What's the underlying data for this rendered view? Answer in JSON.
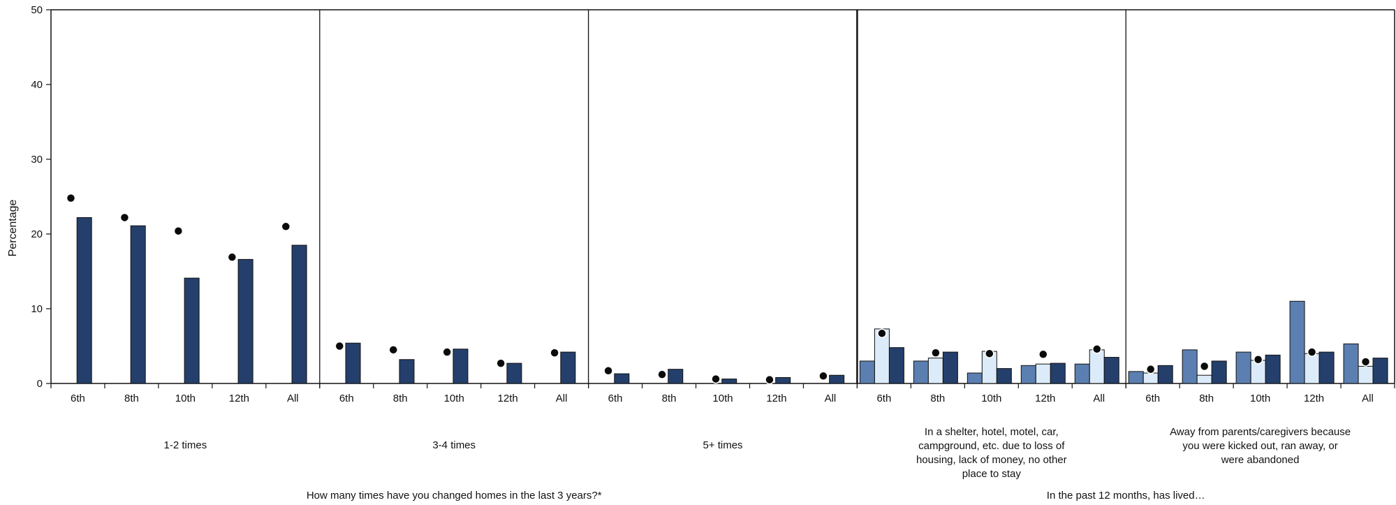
{
  "chart_data": {
    "type": "bar",
    "ylabel": "Percentage",
    "ylim": [
      0,
      50
    ],
    "yticks": [
      0,
      10,
      20,
      30,
      40,
      50
    ],
    "grid": false,
    "legend": "none",
    "colors": {
      "dark_bar": "#243f6b",
      "mid_bar": "#5b7fb0",
      "light_bar": "#dcebfa",
      "dot": "#0b0b0b"
    },
    "sections": [
      {
        "label": "How many times have you changed homes in the last 3 years?*"
      },
      {
        "label": "In the past 12 months, has lived…"
      }
    ],
    "groups": [
      {
        "label": "1-2 times",
        "categories": [
          "6th",
          "8th",
          "10th",
          "12th",
          "All"
        ],
        "dark_values": [
          22.2,
          21.1,
          14.1,
          16.6,
          18.5
        ],
        "dot_values": [
          24.8,
          22.2,
          20.4,
          16.9,
          21.0
        ]
      },
      {
        "label": "3-4 times",
        "categories": [
          "6th",
          "8th",
          "10th",
          "12th",
          "All"
        ],
        "dark_values": [
          5.4,
          3.2,
          4.6,
          2.7,
          4.2
        ],
        "dot_values": [
          5.0,
          4.5,
          4.2,
          2.7,
          4.1
        ]
      },
      {
        "label": "5+ times",
        "categories": [
          "6th",
          "8th",
          "10th",
          "12th",
          "All"
        ],
        "dark_values": [
          1.3,
          1.9,
          0.6,
          0.8,
          1.1
        ],
        "dot_values": [
          1.7,
          1.2,
          0.6,
          0.5,
          1.0
        ]
      },
      {
        "label": "In a shelter, hotel, motel, car, campground, etc. due to loss of housing, lack of money, no other place to stay",
        "categories": [
          "6th",
          "8th",
          "10th",
          "12th",
          "All"
        ],
        "mid_values": [
          3.0,
          3.0,
          1.4,
          2.4,
          2.6
        ],
        "light_values": [
          7.3,
          3.4,
          4.3,
          2.6,
          4.5
        ],
        "dark_values": [
          4.8,
          4.2,
          2.0,
          2.7,
          3.5
        ],
        "dot_values": [
          6.7,
          4.1,
          4.0,
          3.9,
          4.6
        ]
      },
      {
        "label": "Away from parents/caregivers because you were kicked out, ran away, or were abandoned",
        "categories": [
          "6th",
          "8th",
          "10th",
          "12th",
          "All"
        ],
        "mid_values": [
          1.6,
          4.5,
          4.2,
          11.0,
          5.3
        ],
        "light_values": [
          1.4,
          1.1,
          3.1,
          4.0,
          2.3
        ],
        "dark_values": [
          2.4,
          3.0,
          3.8,
          4.2,
          3.4
        ],
        "dot_values": [
          1.9,
          2.3,
          3.2,
          4.2,
          2.9
        ]
      }
    ]
  }
}
